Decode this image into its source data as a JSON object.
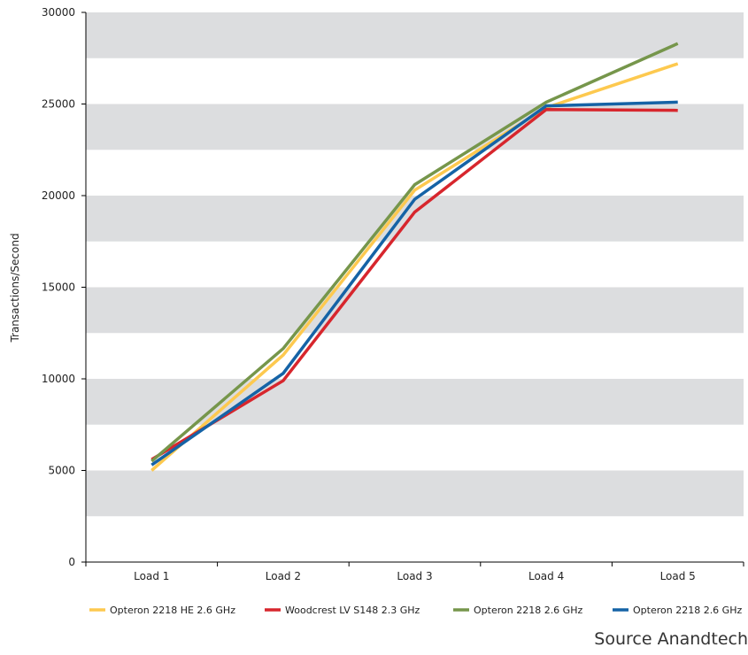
{
  "chart_data": {
    "type": "line",
    "title": "",
    "xlabel": "",
    "ylabel": "Transactions/Second",
    "categories": [
      "Load 1",
      "Load 2",
      "Load 3",
      "Load 4",
      "Load 5"
    ],
    "ylim": [
      0,
      30000
    ],
    "yticks": [
      0,
      5000,
      10000,
      15000,
      20000,
      25000,
      30000
    ],
    "grid": "alternating horizontal bands",
    "band_color": "#dcdddf",
    "legend_position": "bottom",
    "series": [
      {
        "name": "Opteron 2218 HE 2.6 GHz",
        "color": "#fdc94f",
        "values": [
          5000,
          11300,
          20300,
          24800,
          27200
        ]
      },
      {
        "name": "Woodcrest LV S148 2.3 GHz",
        "color": "#d7262d",
        "values": [
          5600,
          9900,
          19100,
          24700,
          24650
        ]
      },
      {
        "name": "Opteron 2218 2.6 GHz",
        "color": "#76964b",
        "values": [
          5500,
          11650,
          20600,
          25100,
          28300
        ]
      },
      {
        "name": "Opteron 2218 2.6 GHz",
        "color": "#1563a6",
        "values": [
          5300,
          10300,
          19800,
          24900,
          25100
        ]
      }
    ],
    "source": "Source Anandtech"
  }
}
